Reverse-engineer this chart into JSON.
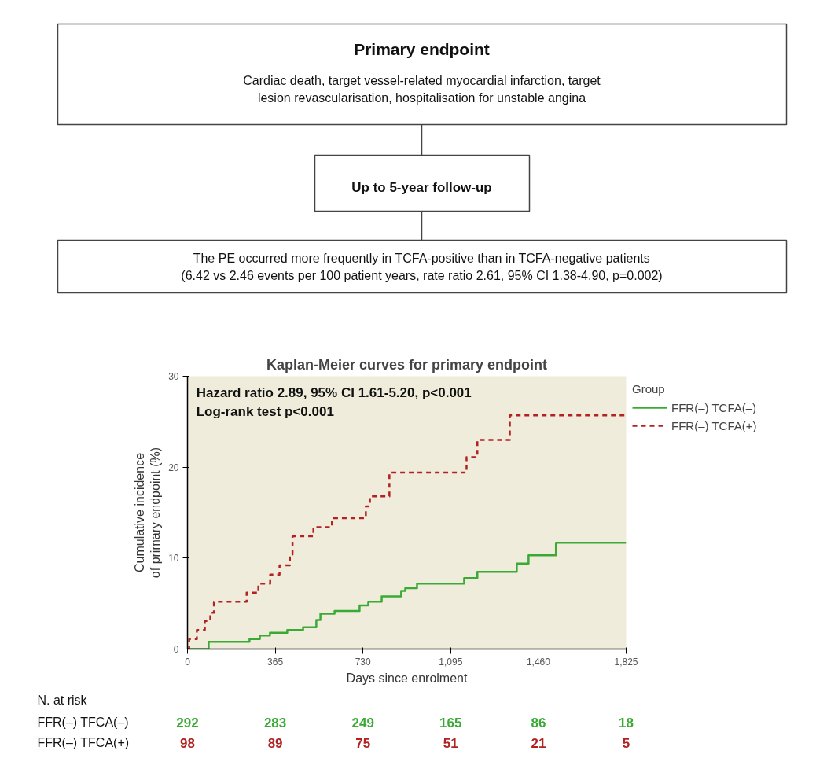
{
  "chart_data": {
    "type": "step",
    "title": "Kaplan-Meier curves for primary endpoint",
    "xlabel": "Days since enrolment",
    "ylabel": "Cumulative incidence\nof primary endpoint (%)",
    "legend_title": "Group",
    "series": [
      {
        "name": "FFR(–) TCFA(–)",
        "color": "#3aaa35",
        "line_style": "solid",
        "x": [
          0,
          88,
          258,
          301,
          343,
          415,
          481,
          536,
          553,
          612,
          716,
          752,
          808,
          889,
          906,
          955,
          1151,
          1206,
          1370,
          1419,
          1533,
          1825
        ],
        "values": [
          0,
          0.8,
          1.1,
          1.5,
          1.8,
          2.1,
          2.4,
          3.2,
          3.9,
          4.2,
          4.8,
          5.2,
          5.8,
          6.4,
          6.7,
          7.2,
          7.8,
          8.5,
          9.4,
          10.3,
          11.7,
          11.7
        ]
      },
      {
        "name": "FFR(–) TCFA(+)",
        "color": "#b22222",
        "line_style": "dashed",
        "x": [
          0,
          7,
          39,
          72,
          95,
          110,
          246,
          295,
          344,
          383,
          426,
          437,
          524,
          601,
          742,
          759,
          840,
          1161,
          1206,
          1341,
          1825
        ],
        "values": [
          0,
          1.1,
          2.1,
          3.1,
          4.0,
          5.2,
          6.2,
          7.2,
          8.2,
          9.2,
          10.4,
          12.4,
          13.4,
          14.4,
          15.7,
          16.8,
          19.4,
          21.1,
          23.0,
          25.7,
          25.7
        ]
      }
    ],
    "xlim": [
      0,
      1825
    ],
    "ylim": [
      0,
      30
    ],
    "xticks": [
      0,
      365,
      730,
      {
        "value": 1095,
        "label": "1,095"
      },
      {
        "value": 1460,
        "label": "1,460"
      },
      {
        "value": 1825,
        "label": "1,825"
      }
    ],
    "yticks": [
      0,
      10,
      20,
      30
    ],
    "grid": false,
    "legend": "top right",
    "annotations": [
      "Primary endpoint",
      "Cardiac death, target vessel-related myocardial infarction, target\nlesion revascularisation, hospitalisation for unstable angina",
      "Up to 5-year follow-up",
      "The PE occurred more frequently in TCFA-positive than in TCFA-negative patients\n(6.42 vs 2.46 events per 100 patient years, rate ratio 2.61, 95% CI 1.38-4.90, p=0.002)",
      "Hazard ratio 2.89, 95% CI 1.61-5.20, p<0.001",
      "Log-rank test p<0.001",
      "N. at risk",
      "FFR(–) TFCA(–)",
      "292",
      "283",
      "249",
      "165",
      "86",
      "18",
      "FFR(–) TFCA(+)",
      "98",
      "89",
      "75",
      "51",
      "21",
      "5"
    ]
  }
}
